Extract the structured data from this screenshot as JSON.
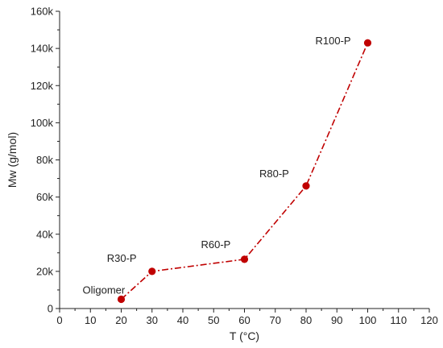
{
  "chart_data": {
    "type": "line",
    "title": "",
    "xlabel": "T (°C)",
    "ylabel": "Mw (g/mol)",
    "xlim": [
      0,
      120
    ],
    "ylim": [
      0,
      160000
    ],
    "x_ticks": [
      "0",
      "10",
      "20",
      "30",
      "40",
      "50",
      "60",
      "70",
      "80",
      "90",
      "100",
      "110",
      "120"
    ],
    "y_ticks": [
      "0",
      "20k",
      "40k",
      "60k",
      "80k",
      "100k",
      "120k",
      "140k",
      "160k"
    ],
    "grid": false,
    "line_style": "dash-dot",
    "color": "#c00000",
    "series": [
      {
        "x": [
          20,
          30,
          60,
          80,
          100
        ],
        "y": [
          5000,
          20000,
          26500,
          66000,
          143000
        ]
      }
    ],
    "annotations": [
      {
        "text": "Oligomer",
        "x": 20,
        "y": 5000
      },
      {
        "text": "R30-P",
        "x": 30,
        "y": 20000
      },
      {
        "text": "R60-P",
        "x": 60,
        "y": 26500
      },
      {
        "text": "R80-P",
        "x": 80,
        "y": 66000
      },
      {
        "text": "R100-P",
        "x": 100,
        "y": 143000
      }
    ]
  }
}
